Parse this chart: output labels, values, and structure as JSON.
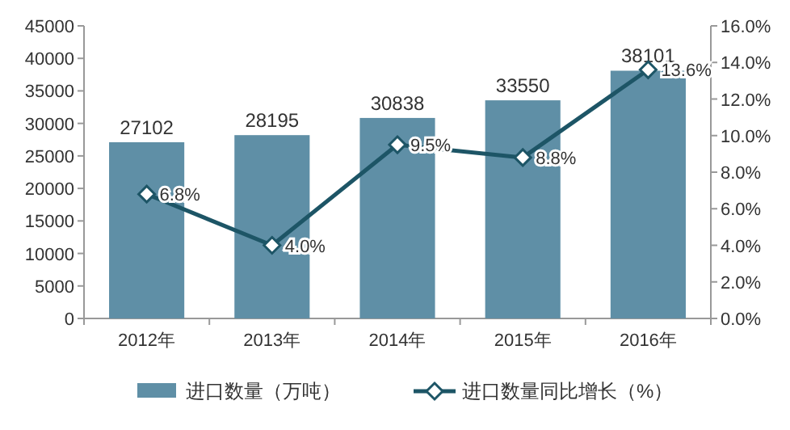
{
  "chart_data": {
    "type": "bar",
    "categories": [
      "2012年",
      "2013年",
      "2014年",
      "2015年",
      "2016年"
    ],
    "series": [
      {
        "name": "进口数量（万吨）",
        "color": "#5f8fa6",
        "values": [
          27102,
          28195,
          30838,
          33550,
          38101
        ],
        "value_labels": [
          "27102",
          "28195",
          "30838",
          "33550",
          "38101"
        ]
      },
      {
        "name": "进口数量同比增长（%）",
        "type": "line",
        "axis": "y2",
        "color": "#1d5566",
        "marker": "diamond",
        "values": [
          6.8,
          4.0,
          9.5,
          8.8,
          13.6
        ],
        "value_labels": [
          "6.8%",
          "4.0%",
          "9.5%",
          "8.8%",
          "13.6%"
        ]
      }
    ],
    "ylim": [
      0,
      45000
    ],
    "yticks": [
      0,
      5000,
      10000,
      15000,
      20000,
      25000,
      30000,
      35000,
      40000,
      45000
    ],
    "y2lim": [
      0,
      16
    ],
    "y2ticks": [
      {
        "value": 0,
        "label": "0.0%"
      },
      {
        "value": 2,
        "label": "2.0%"
      },
      {
        "value": 4,
        "label": "4.0%"
      },
      {
        "value": 6,
        "label": "6.0%"
      },
      {
        "value": 8,
        "label": "8.0%"
      },
      {
        "value": 10,
        "label": "10.0%"
      },
      {
        "value": 12,
        "label": "12.0%"
      },
      {
        "value": 14,
        "label": "14.0%"
      },
      {
        "value": 16,
        "label": "16.0%"
      }
    ],
    "grid": false,
    "legend": "bottom"
  }
}
